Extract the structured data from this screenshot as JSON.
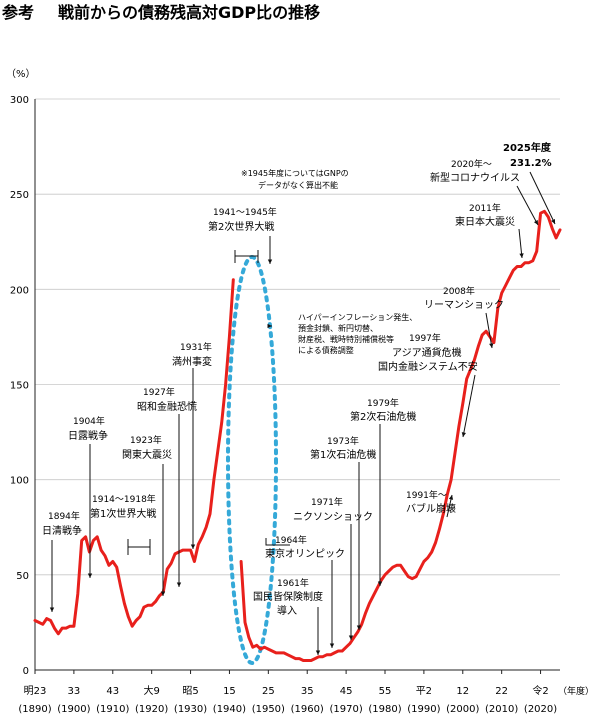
{
  "header": {
    "prefix": "参考",
    "title": "戦前からの債務残高対GDP比の推移"
  },
  "colors": {
    "line": "#e8201c",
    "dotted": "#35a9d8",
    "axis": "#222222",
    "text": "#111111"
  },
  "chart_data": {
    "type": "line",
    "title": "戦前からの債務残高対GDP比の推移",
    "ylabel": "（%）",
    "xlabel": "（年度）",
    "ylim": [
      0,
      300
    ],
    "xlim": [
      1890,
      2025
    ],
    "yticks": [
      0,
      50,
      100,
      150,
      200,
      250,
      300
    ],
    "xticks": [
      {
        "x": 1890,
        "era": "明23",
        "ad": "(1890)"
      },
      {
        "x": 1900,
        "era": "33",
        "ad": "(1900)"
      },
      {
        "x": 1910,
        "era": "43",
        "ad": "(1910)"
      },
      {
        "x": 1920,
        "era": "大9",
        "ad": "(1920)"
      },
      {
        "x": 1930,
        "era": "昭5",
        "ad": "(1930)"
      },
      {
        "x": 1940,
        "era": "15",
        "ad": "(1940)"
      },
      {
        "x": 1950,
        "era": "25",
        "ad": "(1950)"
      },
      {
        "x": 1960,
        "era": "35",
        "ad": "(1960)"
      },
      {
        "x": 1970,
        "era": "45",
        "ad": "(1970)"
      },
      {
        "x": 1980,
        "era": "55",
        "ad": "(1980)"
      },
      {
        "x": 1990,
        "era": "平2",
        "ad": "(1990)"
      },
      {
        "x": 2000,
        "era": "12",
        "ad": "(2000)"
      },
      {
        "x": 2010,
        "era": "22",
        "ad": "(2010)"
      },
      {
        "x": 2020,
        "era": "令2",
        "ad": "(2020)"
      }
    ],
    "series": [
      {
        "segments": [
          [
            [
              1890,
              26
            ],
            [
              1891,
              25
            ],
            [
              1892,
              24
            ],
            [
              1893,
              27
            ],
            [
              1894,
              26
            ],
            [
              1895,
              22
            ],
            [
              1896,
              19
            ],
            [
              1897,
              22
            ],
            [
              1898,
              22
            ],
            [
              1899,
              23
            ],
            [
              1900,
              23
            ],
            [
              1901,
              40
            ],
            [
              1902,
              68
            ],
            [
              1903,
              70
            ],
            [
              1904,
              62
            ],
            [
              1905,
              68
            ],
            [
              1906,
              70
            ],
            [
              1907,
              63
            ],
            [
              1908,
              60
            ],
            [
              1909,
              55
            ],
            [
              1910,
              57
            ],
            [
              1911,
              54
            ],
            [
              1912,
              44
            ],
            [
              1913,
              35
            ],
            [
              1914,
              28
            ],
            [
              1915,
              23
            ],
            [
              1916,
              26
            ],
            [
              1917,
              28
            ],
            [
              1918,
              33
            ],
            [
              1919,
              34
            ],
            [
              1920,
              34
            ],
            [
              1921,
              36
            ],
            [
              1922,
              39
            ],
            [
              1923,
              41
            ],
            [
              1924,
              53
            ],
            [
              1925,
              56
            ],
            [
              1926,
              61
            ],
            [
              1927,
              62
            ],
            [
              1928,
              63
            ],
            [
              1929,
              63
            ],
            [
              1930,
              63
            ],
            [
              1931,
              57
            ],
            [
              1932,
              66
            ],
            [
              1933,
              70
            ],
            [
              1934,
              75
            ],
            [
              1935,
              82
            ],
            [
              1936,
              100
            ],
            [
              1937,
              115
            ],
            [
              1938,
              130
            ],
            [
              1939,
              150
            ],
            [
              1940,
              175
            ],
            [
              1941,
              205
            ]
          ],
          [
            [
              1943,
              57
            ],
            [
              1944,
              25
            ],
            [
              1945,
              17
            ],
            [
              1946,
              12
            ],
            [
              1947,
              13
            ],
            [
              1948,
              11
            ],
            [
              1949,
              12
            ],
            [
              1950,
              11
            ],
            [
              1951,
              10
            ],
            [
              1952,
              9
            ],
            [
              1953,
              9
            ],
            [
              1954,
              9
            ],
            [
              1955,
              8
            ],
            [
              1956,
              7
            ],
            [
              1957,
              6
            ],
            [
              1958,
              6
            ],
            [
              1959,
              5
            ],
            [
              1960,
              5
            ],
            [
              1961,
              5
            ],
            [
              1962,
              6
            ],
            [
              1963,
              7
            ],
            [
              1964,
              7
            ],
            [
              1965,
              8
            ],
            [
              1966,
              8
            ],
            [
              1967,
              9
            ],
            [
              1968,
              10
            ],
            [
              1969,
              10
            ],
            [
              1970,
              12
            ],
            [
              1971,
              14
            ],
            [
              1972,
              17
            ],
            [
              1973,
              20
            ],
            [
              1974,
              24
            ],
            [
              1975,
              30
            ],
            [
              1976,
              35
            ],
            [
              1977,
              39
            ],
            [
              1978,
              43
            ],
            [
              1979,
              47
            ],
            [
              1980,
              50
            ],
            [
              1981,
              52
            ],
            [
              1982,
              54
            ],
            [
              1983,
              55
            ],
            [
              1984,
              55
            ],
            [
              1985,
              52
            ],
            [
              1986,
              49
            ],
            [
              1987,
              48
            ],
            [
              1988,
              49
            ],
            [
              1989,
              53
            ],
            [
              1990,
              57
            ],
            [
              1991,
              59
            ],
            [
              1992,
              62
            ],
            [
              1993,
              67
            ],
            [
              1994,
              74
            ],
            [
              1995,
              82
            ],
            [
              1996,
              92
            ],
            [
              1997,
              100
            ],
            [
              1998,
              114
            ],
            [
              1999,
              128
            ],
            [
              2000,
              140
            ],
            [
              2001,
              153
            ],
            [
              2002,
              158
            ],
            [
              2003,
              163
            ],
            [
              2004,
              170
            ],
            [
              2005,
              176
            ],
            [
              2006,
              178
            ],
            [
              2007,
              175
            ],
            [
              2008,
              172
            ],
            [
              2009,
              190
            ],
            [
              2010,
              198
            ],
            [
              2011,
              202
            ],
            [
              2012,
              206
            ],
            [
              2013,
              210
            ],
            [
              2014,
              212
            ],
            [
              2015,
              212
            ],
            [
              2016,
              214
            ],
            [
              2017,
              214
            ],
            [
              2018,
              215
            ],
            [
              2019,
              220
            ],
            [
              2020,
              240
            ],
            [
              2021,
              241
            ],
            [
              2022,
              238
            ],
            [
              2023,
              232
            ],
            [
              2024,
              227
            ],
            [
              2025,
              231.2
            ]
          ]
        ]
      }
    ],
    "annotations": [
      {
        "lines": [
          "1894年",
          "日清戦争"
        ],
        "x_year": 1894
      },
      {
        "lines": [
          "1904年",
          "日露戦争"
        ],
        "x_year": 1904
      },
      {
        "lines": [
          "1914～1918年",
          "第1次世界大戦"
        ],
        "x_year": 1916
      },
      {
        "lines": [
          "1923年",
          "関東大震災"
        ],
        "x_year": 1923
      },
      {
        "lines": [
          "1927年",
          "昭和金融恐慌"
        ],
        "x_year": 1927
      },
      {
        "lines": [
          "1931年",
          "満州事変"
        ],
        "x_year": 1931
      },
      {
        "lines": [
          "1941～1945年",
          "第2次世界大戦"
        ],
        "x_year": 1943
      },
      {
        "lines": [
          "※1945年度についてはGNPの",
          "データがなく算出不能"
        ],
        "x_year": 1955
      },
      {
        "lines": [
          "ハイパーインフレーション発生、",
          "預金封鎖、新円切替、",
          "財産税、戦時特別補償税等",
          "による債務調整"
        ],
        "x_year": 1946
      },
      {
        "lines": [
          "1961年",
          "国民皆保険制度",
          "導入"
        ],
        "x_year": 1961
      },
      {
        "lines": [
          "1964年",
          "東京オリンピック"
        ],
        "x_year": 1964
      },
      {
        "lines": [
          "1971年",
          "ニクソンショック"
        ],
        "x_year": 1971
      },
      {
        "lines": [
          "1973年",
          "第1次石油危機"
        ],
        "x_year": 1973
      },
      {
        "lines": [
          "1979年",
          "第2次石油危機"
        ],
        "x_year": 1979
      },
      {
        "lines": [
          "1991年～",
          "バブル崩壊"
        ],
        "x_year": 1991
      },
      {
        "lines": [
          "1997年",
          "アジア通貨危機",
          "国内金融システム不安"
        ],
        "x_year": 1997
      },
      {
        "lines": [
          "2008年",
          "リーマンショック"
        ],
        "x_year": 2008
      },
      {
        "lines": [
          "2011年",
          "東日本大震災"
        ],
        "x_year": 2011
      },
      {
        "lines": [
          "2020年～",
          "新型コロナウイルス"
        ],
        "x_year": 2020
      },
      {
        "lines": [
          "2025年度",
          "231.2%"
        ],
        "x_year": 2025
      }
    ]
  }
}
